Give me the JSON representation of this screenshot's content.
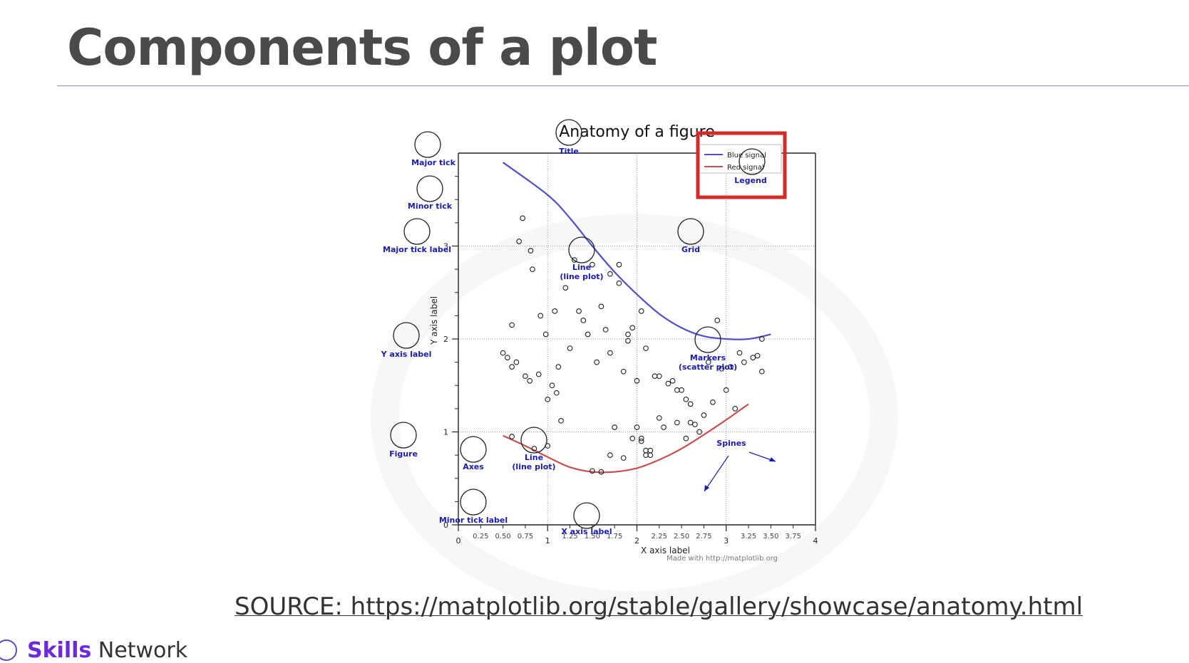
{
  "slide": {
    "title": "Components of a plot",
    "source": "SOURCE: https://matplotlib.org/stable/gallery/showcase/anatomy.html",
    "brand_strong": "Skills",
    "brand_rest": " Network"
  },
  "chart_data": {
    "type": "line",
    "title": "Anatomy of a figure",
    "xlabel": "X axis label",
    "ylabel": "Y axis label",
    "xlim": [
      0,
      4
    ],
    "ylim": [
      0,
      4
    ],
    "grid": true,
    "legend_position": "top-right",
    "x_major_ticks": [
      "0",
      "1",
      "2",
      "3",
      "4"
    ],
    "x_minor_ticks": [
      "0.25",
      "0.50",
      "0.75",
      "1.25",
      "1.50",
      "1.75",
      "2.25",
      "2.50",
      "2.75",
      "3.25",
      "3.50",
      "3.75"
    ],
    "y_major_ticks": [
      "0",
      "1",
      "2",
      "3"
    ],
    "series": [
      {
        "name": "Blue signal",
        "color": "#5050c8",
        "x": [
          0.5,
          1.0,
          1.25,
          1.5,
          1.75,
          2.0,
          2.25,
          2.5,
          2.75,
          3.0,
          3.25,
          3.5
        ],
        "values": [
          3.9,
          3.55,
          3.3,
          3.0,
          2.72,
          2.48,
          2.27,
          2.12,
          2.03,
          2.0,
          2.0,
          2.05
        ]
      },
      {
        "name": "Red signal",
        "color": "#c85050",
        "x": [
          0.5,
          0.75,
          1.0,
          1.25,
          1.5,
          1.75,
          2.0,
          2.25,
          2.5,
          2.75,
          3.0,
          3.25
        ],
        "values": [
          0.96,
          0.85,
          0.73,
          0.62,
          0.57,
          0.57,
          0.61,
          0.7,
          0.82,
          0.97,
          1.13,
          1.3
        ]
      }
    ],
    "scatter": {
      "x": [
        0.72,
        0.68,
        0.81,
        0.83,
        0.6,
        0.92,
        0.98,
        1.08,
        1.0,
        1.12,
        1.2,
        1.3,
        1.35,
        1.4,
        1.45,
        1.5,
        1.55,
        1.6,
        1.7,
        1.75,
        1.8,
        1.85,
        1.9,
        1.95,
        2.0,
        2.05,
        2.1,
        2.15,
        2.2,
        2.25,
        2.3,
        2.4,
        2.5,
        2.6,
        2.7,
        2.8,
        2.9,
        3.0,
        3.1,
        3.2,
        3.3,
        3.4,
        0.5,
        0.55,
        0.6,
        0.65,
        0.75,
        0.8,
        0.9,
        1.05,
        1.1,
        1.15,
        1.25,
        1.65,
        1.7,
        1.8,
        1.9,
        2.0,
        2.05,
        2.1,
        2.15,
        2.25,
        2.35,
        2.45,
        2.55,
        2.6,
        2.65,
        2.75,
        2.85,
        2.95,
        3.05,
        3.15,
        3.35,
        3.4,
        0.6,
        0.85,
        1.0,
        1.5,
        1.6,
        1.7,
        1.85,
        1.95,
        2.05,
        2.1,
        2.45,
        2.55
      ],
      "y": [
        3.3,
        3.05,
        2.95,
        2.75,
        2.15,
        2.25,
        2.05,
        2.3,
        1.35,
        1.7,
        2.55,
        2.85,
        2.3,
        2.2,
        2.05,
        2.8,
        1.75,
        2.35,
        1.85,
        1.05,
        2.8,
        1.65,
        1.98,
        2.12,
        1.55,
        2.3,
        1.9,
        0.8,
        1.6,
        1.15,
        1.05,
        1.55,
        1.45,
        1.3,
        1.0,
        1.75,
        2.2,
        1.45,
        1.25,
        1.75,
        1.8,
        2.0,
        1.85,
        1.8,
        1.7,
        1.75,
        1.6,
        1.55,
        1.62,
        1.5,
        1.42,
        1.12,
        1.9,
        2.1,
        2.7,
        2.6,
        2.05,
        1.05,
        0.93,
        0.8,
        0.75,
        1.6,
        1.52,
        1.45,
        1.35,
        1.1,
        1.08,
        1.18,
        1.32,
        1.68,
        1.7,
        1.85,
        1.82,
        1.65,
        0.95,
        0.82,
        0.85,
        0.58,
        0.57,
        0.75,
        0.72,
        0.93,
        0.9,
        0.75,
        1.1,
        0.93
      ]
    },
    "annotations": [
      "Major tick",
      "Minor tick",
      "Major tick label",
      "Title",
      "Legend",
      "Grid",
      "Line\n(line plot)",
      "Y axis label",
      "Markers\n(scatter plot)",
      "Figure",
      "Axes",
      "Line\n(line plot)",
      "Spines",
      "Minor tick label",
      "X axis label"
    ],
    "footer": "Made with http://matplotlib.org"
  }
}
